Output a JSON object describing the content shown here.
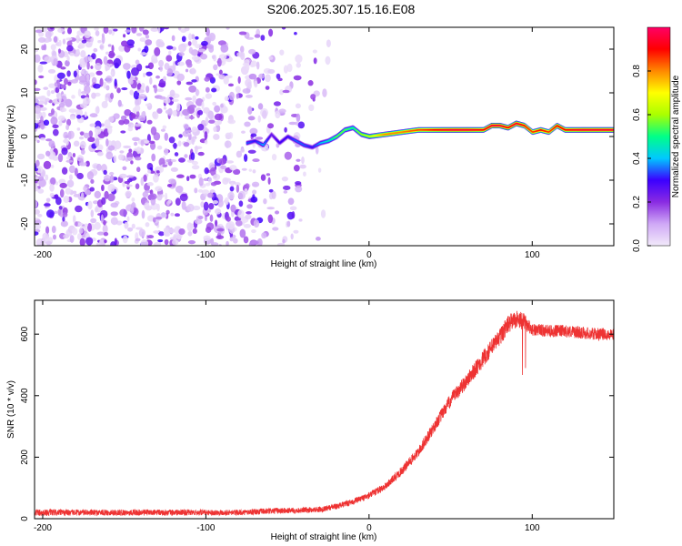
{
  "title": "S206.2025.307.15.16.E08",
  "chart_data": [
    {
      "type": "heatmap",
      "title": "S206.2025.307.15.16.E08",
      "xlabel": "Height of straight line (km)",
      "ylabel": "Frequency (Hz)",
      "xlim": [
        -205,
        150
      ],
      "ylim": [
        -25,
        25
      ],
      "xticks": [
        -200,
        -100,
        0,
        100
      ],
      "yticks": [
        -20,
        -10,
        0,
        10,
        20
      ],
      "xtick_labels": [
        "-200",
        "-100",
        "0",
        "100"
      ],
      "ytick_labels": [
        "-20",
        "-10",
        "0",
        "10",
        "20"
      ],
      "colorbar": {
        "label": "Normalized spectral amplitude",
        "range": [
          0.0,
          1.0
        ],
        "ticks": [
          0.0,
          0.2,
          0.4,
          0.6,
          0.8
        ],
        "tick_labels": [
          "0.0",
          "0.2",
          "0.4",
          "0.6",
          "0.8"
        ],
        "colors": [
          "#f2eafa",
          "#cfa8f6",
          "#8a2be2",
          "#3b00ff",
          "#00c8ff",
          "#00ff88",
          "#aaff00",
          "#ffff00",
          "#ff8800",
          "#ff0000",
          "#ff0066"
        ]
      },
      "noise_region_km": [
        -205,
        -30
      ],
      "signal_track": {
        "x": [
          -75,
          -70,
          -65,
          -60,
          -55,
          -50,
          -45,
          -40,
          -35,
          -30,
          -25,
          -20,
          -15,
          -10,
          -5,
          0,
          10,
          20,
          30,
          40,
          50,
          60,
          70,
          75,
          80,
          85,
          90,
          95,
          100,
          105,
          110,
          115,
          120,
          130,
          140,
          150
        ],
        "freq": [
          -1.5,
          -1.0,
          -2.0,
          0.5,
          -1.5,
          0.0,
          -1.0,
          -2.0,
          -2.5,
          -1.5,
          -1.0,
          0.0,
          1.5,
          2.0,
          0.5,
          0.0,
          0.5,
          1.0,
          1.5,
          1.5,
          1.5,
          1.5,
          1.5,
          2.5,
          2.5,
          2.0,
          3.0,
          2.5,
          1.0,
          1.5,
          1.0,
          2.5,
          1.5,
          1.5,
          1.5,
          1.5
        ],
        "amp": [
          0.35,
          0.3,
          0.4,
          0.25,
          0.3,
          0.3,
          0.35,
          0.35,
          0.3,
          0.4,
          0.45,
          0.55,
          0.55,
          0.5,
          0.6,
          0.65,
          0.8,
          0.8,
          0.85,
          0.9,
          0.95,
          0.95,
          0.9,
          0.95,
          0.95,
          0.9,
          0.95,
          0.9,
          0.85,
          0.9,
          0.85,
          0.9,
          0.9,
          0.95,
          0.95,
          0.95
        ]
      }
    },
    {
      "type": "line",
      "xlabel": "Height of straight line (km)",
      "ylabel": "SNR (10 * v/v)",
      "xlim": [
        -205,
        150
      ],
      "ylim": [
        0,
        710
      ],
      "xticks": [
        -200,
        -100,
        0,
        100
      ],
      "yticks": [
        0,
        200,
        400,
        600
      ],
      "xtick_labels": [
        "-200",
        "-100",
        "0",
        "100"
      ],
      "ytick_labels": [
        "0",
        "200",
        "400",
        "600"
      ],
      "color": "#ee3333",
      "series": [
        {
          "name": "SNR",
          "x": [
            -205,
            -180,
            -150,
            -120,
            -100,
            -80,
            -60,
            -40,
            -30,
            -20,
            -10,
            0,
            10,
            20,
            30,
            40,
            50,
            60,
            70,
            80,
            85,
            90,
            95,
            100,
            110,
            120,
            130,
            140,
            150
          ],
          "y": [
            20,
            20,
            20,
            20,
            20,
            20,
            25,
            28,
            30,
            40,
            55,
            75,
            105,
            155,
            215,
            300,
            385,
            450,
            520,
            590,
            630,
            650,
            640,
            615,
            610,
            610,
            605,
            600,
            600
          ],
          "noise_amplitude": [
            22,
            20,
            20,
            20,
            18,
            18,
            20,
            18,
            18,
            18,
            20,
            22,
            25,
            30,
            35,
            40,
            45,
            50,
            55,
            60,
            60,
            60,
            55,
            40,
            40,
            40,
            40,
            40,
            40
          ]
        }
      ]
    }
  ]
}
